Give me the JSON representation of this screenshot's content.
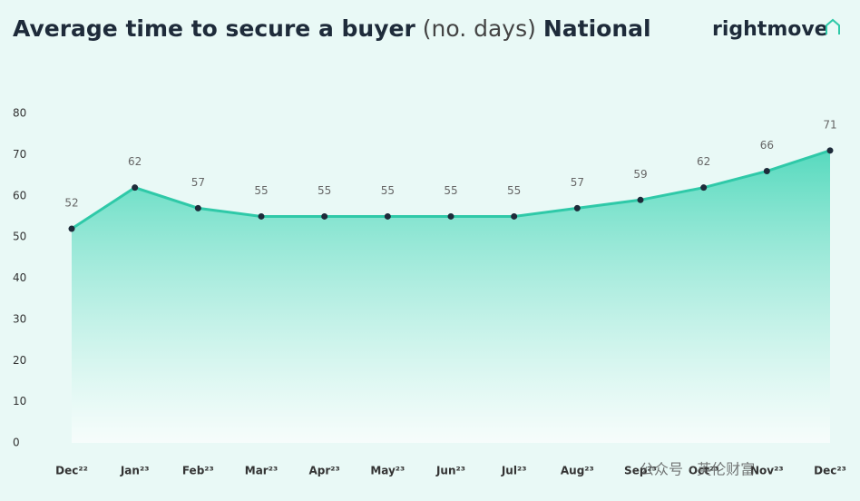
{
  "chart_data": {
    "type": "line",
    "title": "Average time to secure a buyer",
    "title_unit": "(no. days)",
    "title_region": "National",
    "brand": "rightmove",
    "watermark": "公众号 · 英伦财富",
    "categories": [
      "Dec²²",
      "Jan²³",
      "Feb²³",
      "Mar²³",
      "Apr²³",
      "May²³",
      "Jun²³",
      "Jul²³",
      "Aug²³",
      "Sep²³",
      "Oct²³",
      "Nov²³",
      "Dec²³"
    ],
    "values": [
      52,
      62,
      57,
      55,
      55,
      55,
      55,
      55,
      57,
      59,
      62,
      66,
      71
    ],
    "color": "#2fc9a8",
    "ylim": [
      0,
      80
    ],
    "yticks": [
      0,
      10,
      20,
      30,
      40,
      50,
      60,
      70,
      80
    ],
    "grid": false
  }
}
